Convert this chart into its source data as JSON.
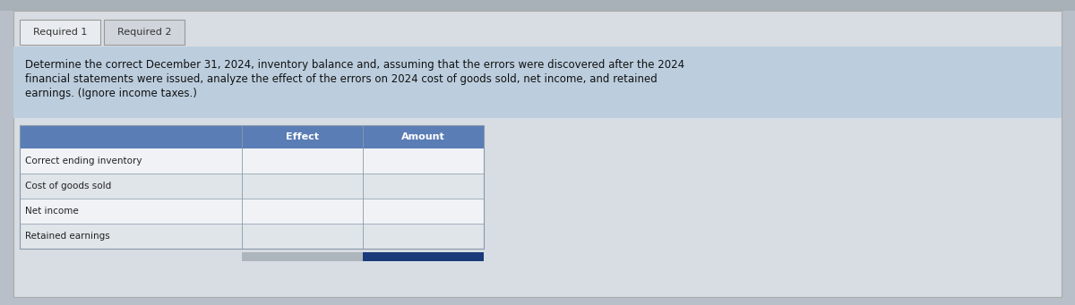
{
  "tab1_label": "Required 1",
  "tab2_label": "Required 2",
  "description": "Determine the correct December 31, 2024, inventory balance and, assuming that the errors were discovered after the 2024\nfinancial statements were issued, analyze the effect of the errors on 2024 cost of goods sold, net income, and retained\nearnings. (Ignore income taxes.)",
  "table_header_col1": "Effect",
  "table_header_col2": "Amount",
  "table_rows": [
    "Correct ending inventory",
    "Cost of goods sold",
    "Net income",
    "Retained earnings"
  ],
  "page_bg": "#b8bfc8",
  "top_bar_bg": "#a8b0b8",
  "card_bg": "#d8dde3",
  "tab_active_bg": "#e8ecf0",
  "tab_inactive_bg": "#d0d5db",
  "tab_border": "#999999",
  "desc_bg": "#bccede",
  "header_bg": "#5b7db5",
  "header_text": "#ffffff",
  "row_bg_white": "#f0f2f5",
  "row_bg_light": "#e0e5ea",
  "cell_border": "#8899aa",
  "footer_grey": "#adb5bd",
  "footer_blue": "#1a3a7a",
  "desc_font_size": 8.5,
  "tab_font_size": 8,
  "header_font_size": 8,
  "row_font_size": 7.5
}
